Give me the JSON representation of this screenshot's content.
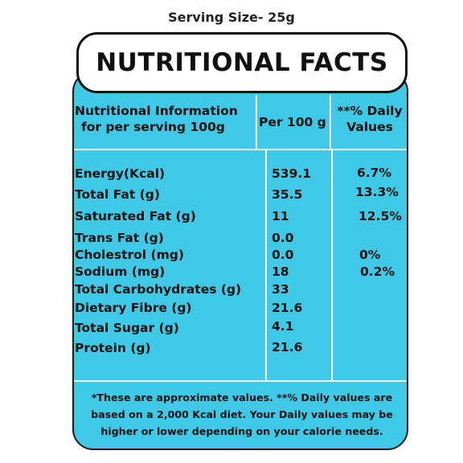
{
  "serving_size": "Serving Size- 25g",
  "title": "NUTRITIONAL FACTS",
  "header": {
    "col1_line1": "Nutritional Information",
    "col1_line2": "for per serving 100g",
    "col2": "Per 100 g",
    "col3_line1": "**% Daily",
    "col3_line2": "Values"
  },
  "rows": [
    {
      "name": "Energy(Kcal)",
      "per100": "539.1",
      "daily": "6.7%"
    },
    {
      "name": "Total Fat (g)",
      "per100": "35.5",
      "daily": "13.3%"
    },
    {
      "name": "Saturated Fat (g)",
      "per100": "11",
      "daily": "12.5%"
    },
    {
      "name": "Trans Fat (g)",
      "per100": "0.0",
      "daily": ""
    },
    {
      "name": "Cholestrol (mg)",
      "per100": "0.0",
      "daily": "0%"
    },
    {
      "name": "Sodium (mg)",
      "per100": "18",
      "daily": "0.2%"
    },
    {
      "name": "Total Carbohydrates (g)",
      "per100": "33",
      "daily": ""
    },
    {
      "name": "Dietary Fibre (g)",
      "per100": "21.6",
      "daily": ""
    },
    {
      "name": "Total Sugar (g)",
      "per100": "4.1",
      "daily": ""
    },
    {
      "name": "Protein (g)",
      "per100": "21.6",
      "daily": ""
    }
  ],
  "footnote": {
    "line1": "*These are approximate values.  **% Daily values are",
    "line2": "based on a 2,000 Kcal diet. Your Daily values may be",
    "line3": "higher or lower depending on your calorie needs."
  },
  "colors": {
    "panel": "#3fc9e6",
    "lines": "#ffffff",
    "text": "#111111"
  }
}
